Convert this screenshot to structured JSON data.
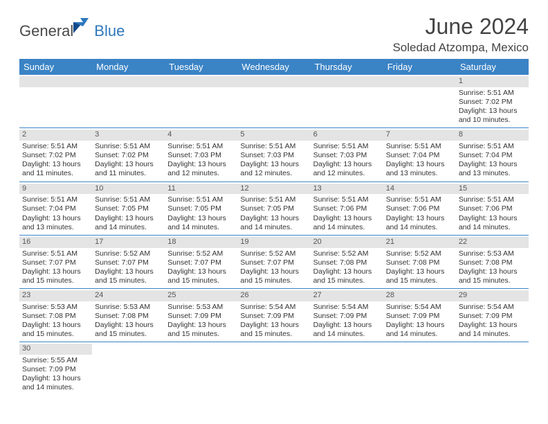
{
  "brand": {
    "general": "General",
    "blue": "Blue"
  },
  "title": "June 2024",
  "location": "Soledad Atzompa, Mexico",
  "colors": {
    "header_bg": "#3a83c5",
    "grid_line": "#3a83c5",
    "daynum_bg": "#e4e4e4"
  },
  "weekdays": [
    "Sunday",
    "Monday",
    "Tuesday",
    "Wednesday",
    "Thursday",
    "Friday",
    "Saturday"
  ],
  "weeks": [
    [
      null,
      null,
      null,
      null,
      null,
      null,
      {
        "n": "1",
        "sr": "Sunrise: 5:51 AM",
        "ss": "Sunset: 7:02 PM",
        "dl": "Daylight: 13 hours and 10 minutes."
      }
    ],
    [
      {
        "n": "2",
        "sr": "Sunrise: 5:51 AM",
        "ss": "Sunset: 7:02 PM",
        "dl": "Daylight: 13 hours and 11 minutes."
      },
      {
        "n": "3",
        "sr": "Sunrise: 5:51 AM",
        "ss": "Sunset: 7:02 PM",
        "dl": "Daylight: 13 hours and 11 minutes."
      },
      {
        "n": "4",
        "sr": "Sunrise: 5:51 AM",
        "ss": "Sunset: 7:03 PM",
        "dl": "Daylight: 13 hours and 12 minutes."
      },
      {
        "n": "5",
        "sr": "Sunrise: 5:51 AM",
        "ss": "Sunset: 7:03 PM",
        "dl": "Daylight: 13 hours and 12 minutes."
      },
      {
        "n": "6",
        "sr": "Sunrise: 5:51 AM",
        "ss": "Sunset: 7:03 PM",
        "dl": "Daylight: 13 hours and 12 minutes."
      },
      {
        "n": "7",
        "sr": "Sunrise: 5:51 AM",
        "ss": "Sunset: 7:04 PM",
        "dl": "Daylight: 13 hours and 13 minutes."
      },
      {
        "n": "8",
        "sr": "Sunrise: 5:51 AM",
        "ss": "Sunset: 7:04 PM",
        "dl": "Daylight: 13 hours and 13 minutes."
      }
    ],
    [
      {
        "n": "9",
        "sr": "Sunrise: 5:51 AM",
        "ss": "Sunset: 7:04 PM",
        "dl": "Daylight: 13 hours and 13 minutes."
      },
      {
        "n": "10",
        "sr": "Sunrise: 5:51 AM",
        "ss": "Sunset: 7:05 PM",
        "dl": "Daylight: 13 hours and 14 minutes."
      },
      {
        "n": "11",
        "sr": "Sunrise: 5:51 AM",
        "ss": "Sunset: 7:05 PM",
        "dl": "Daylight: 13 hours and 14 minutes."
      },
      {
        "n": "12",
        "sr": "Sunrise: 5:51 AM",
        "ss": "Sunset: 7:05 PM",
        "dl": "Daylight: 13 hours and 14 minutes."
      },
      {
        "n": "13",
        "sr": "Sunrise: 5:51 AM",
        "ss": "Sunset: 7:06 PM",
        "dl": "Daylight: 13 hours and 14 minutes."
      },
      {
        "n": "14",
        "sr": "Sunrise: 5:51 AM",
        "ss": "Sunset: 7:06 PM",
        "dl": "Daylight: 13 hours and 14 minutes."
      },
      {
        "n": "15",
        "sr": "Sunrise: 5:51 AM",
        "ss": "Sunset: 7:06 PM",
        "dl": "Daylight: 13 hours and 14 minutes."
      }
    ],
    [
      {
        "n": "16",
        "sr": "Sunrise: 5:51 AM",
        "ss": "Sunset: 7:07 PM",
        "dl": "Daylight: 13 hours and 15 minutes."
      },
      {
        "n": "17",
        "sr": "Sunrise: 5:52 AM",
        "ss": "Sunset: 7:07 PM",
        "dl": "Daylight: 13 hours and 15 minutes."
      },
      {
        "n": "18",
        "sr": "Sunrise: 5:52 AM",
        "ss": "Sunset: 7:07 PM",
        "dl": "Daylight: 13 hours and 15 minutes."
      },
      {
        "n": "19",
        "sr": "Sunrise: 5:52 AM",
        "ss": "Sunset: 7:07 PM",
        "dl": "Daylight: 13 hours and 15 minutes."
      },
      {
        "n": "20",
        "sr": "Sunrise: 5:52 AM",
        "ss": "Sunset: 7:08 PM",
        "dl": "Daylight: 13 hours and 15 minutes."
      },
      {
        "n": "21",
        "sr": "Sunrise: 5:52 AM",
        "ss": "Sunset: 7:08 PM",
        "dl": "Daylight: 13 hours and 15 minutes."
      },
      {
        "n": "22",
        "sr": "Sunrise: 5:53 AM",
        "ss": "Sunset: 7:08 PM",
        "dl": "Daylight: 13 hours and 15 minutes."
      }
    ],
    [
      {
        "n": "23",
        "sr": "Sunrise: 5:53 AM",
        "ss": "Sunset: 7:08 PM",
        "dl": "Daylight: 13 hours and 15 minutes."
      },
      {
        "n": "24",
        "sr": "Sunrise: 5:53 AM",
        "ss": "Sunset: 7:08 PM",
        "dl": "Daylight: 13 hours and 15 minutes."
      },
      {
        "n": "25",
        "sr": "Sunrise: 5:53 AM",
        "ss": "Sunset: 7:09 PM",
        "dl": "Daylight: 13 hours and 15 minutes."
      },
      {
        "n": "26",
        "sr": "Sunrise: 5:54 AM",
        "ss": "Sunset: 7:09 PM",
        "dl": "Daylight: 13 hours and 15 minutes."
      },
      {
        "n": "27",
        "sr": "Sunrise: 5:54 AM",
        "ss": "Sunset: 7:09 PM",
        "dl": "Daylight: 13 hours and 14 minutes."
      },
      {
        "n": "28",
        "sr": "Sunrise: 5:54 AM",
        "ss": "Sunset: 7:09 PM",
        "dl": "Daylight: 13 hours and 14 minutes."
      },
      {
        "n": "29",
        "sr": "Sunrise: 5:54 AM",
        "ss": "Sunset: 7:09 PM",
        "dl": "Daylight: 13 hours and 14 minutes."
      }
    ],
    [
      {
        "n": "30",
        "sr": "Sunrise: 5:55 AM",
        "ss": "Sunset: 7:09 PM",
        "dl": "Daylight: 13 hours and 14 minutes."
      },
      null,
      null,
      null,
      null,
      null,
      null
    ]
  ]
}
